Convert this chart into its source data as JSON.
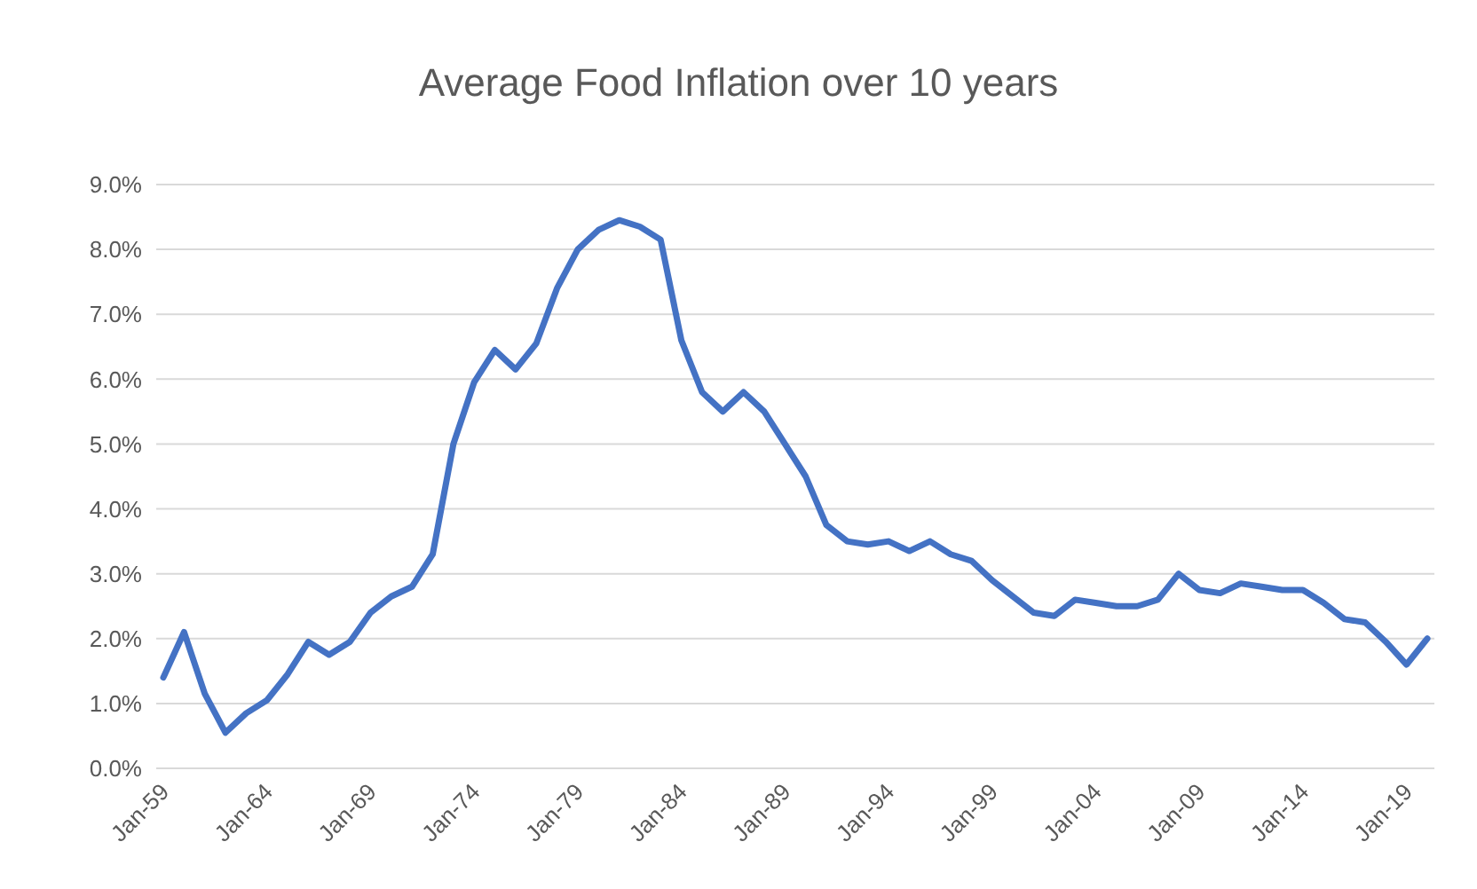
{
  "chart_data": {
    "type": "line",
    "title": "Average Food Inflation over 10 years",
    "categories": [
      "Jan-59",
      null,
      null,
      null,
      null,
      "Jan-64",
      null,
      null,
      null,
      null,
      "Jan-69",
      null,
      null,
      null,
      null,
      "Jan-74",
      null,
      null,
      null,
      null,
      "Jan-79",
      null,
      null,
      null,
      null,
      "Jan-84",
      null,
      null,
      null,
      null,
      "Jan-89",
      null,
      null,
      null,
      null,
      "Jan-94",
      null,
      null,
      null,
      null,
      "Jan-99",
      null,
      null,
      null,
      null,
      "Jan-04",
      null,
      null,
      null,
      null,
      "Jan-09",
      null,
      null,
      null,
      null,
      "Jan-14",
      null,
      null,
      null,
      null,
      "Jan-19",
      null
    ],
    "series": [
      {
        "color": "#4472c4",
        "values": [
          1.4,
          2.1,
          1.15,
          0.55,
          0.85,
          1.05,
          1.45,
          1.95,
          1.75,
          1.95,
          2.4,
          2.65,
          2.8,
          3.3,
          5.0,
          5.95,
          6.45,
          6.15,
          6.55,
          7.4,
          8.0,
          8.3,
          8.45,
          8.35,
          8.15,
          6.6,
          5.8,
          5.5,
          5.8,
          5.5,
          5.0,
          4.5,
          3.75,
          3.5,
          3.45,
          3.5,
          3.35,
          3.5,
          3.3,
          3.2,
          2.9,
          2.65,
          2.4,
          2.35,
          2.6,
          2.55,
          2.5,
          2.5,
          2.6,
          3.0,
          2.75,
          2.7,
          2.85,
          2.8,
          2.75,
          2.75,
          2.55,
          2.3,
          2.25,
          1.95,
          1.6,
          2.0
        ]
      }
    ],
    "ylim": [
      0,
      9
    ],
    "yticks": [
      {
        "value": 0,
        "label": "0.0%"
      },
      {
        "value": 1,
        "label": "1.0%"
      },
      {
        "value": 2,
        "label": "2.0%"
      },
      {
        "value": 3,
        "label": "3.0%"
      },
      {
        "value": 4,
        "label": "4.0%"
      },
      {
        "value": 5,
        "label": "5.0%"
      },
      {
        "value": 6,
        "label": "6.0%"
      },
      {
        "value": 7,
        "label": "7.0%"
      },
      {
        "value": 8,
        "label": "8.0%"
      },
      {
        "value": 9,
        "label": "9.0%"
      }
    ],
    "grid": "y",
    "legend": false,
    "marker": "none",
    "line_style": "solid"
  }
}
